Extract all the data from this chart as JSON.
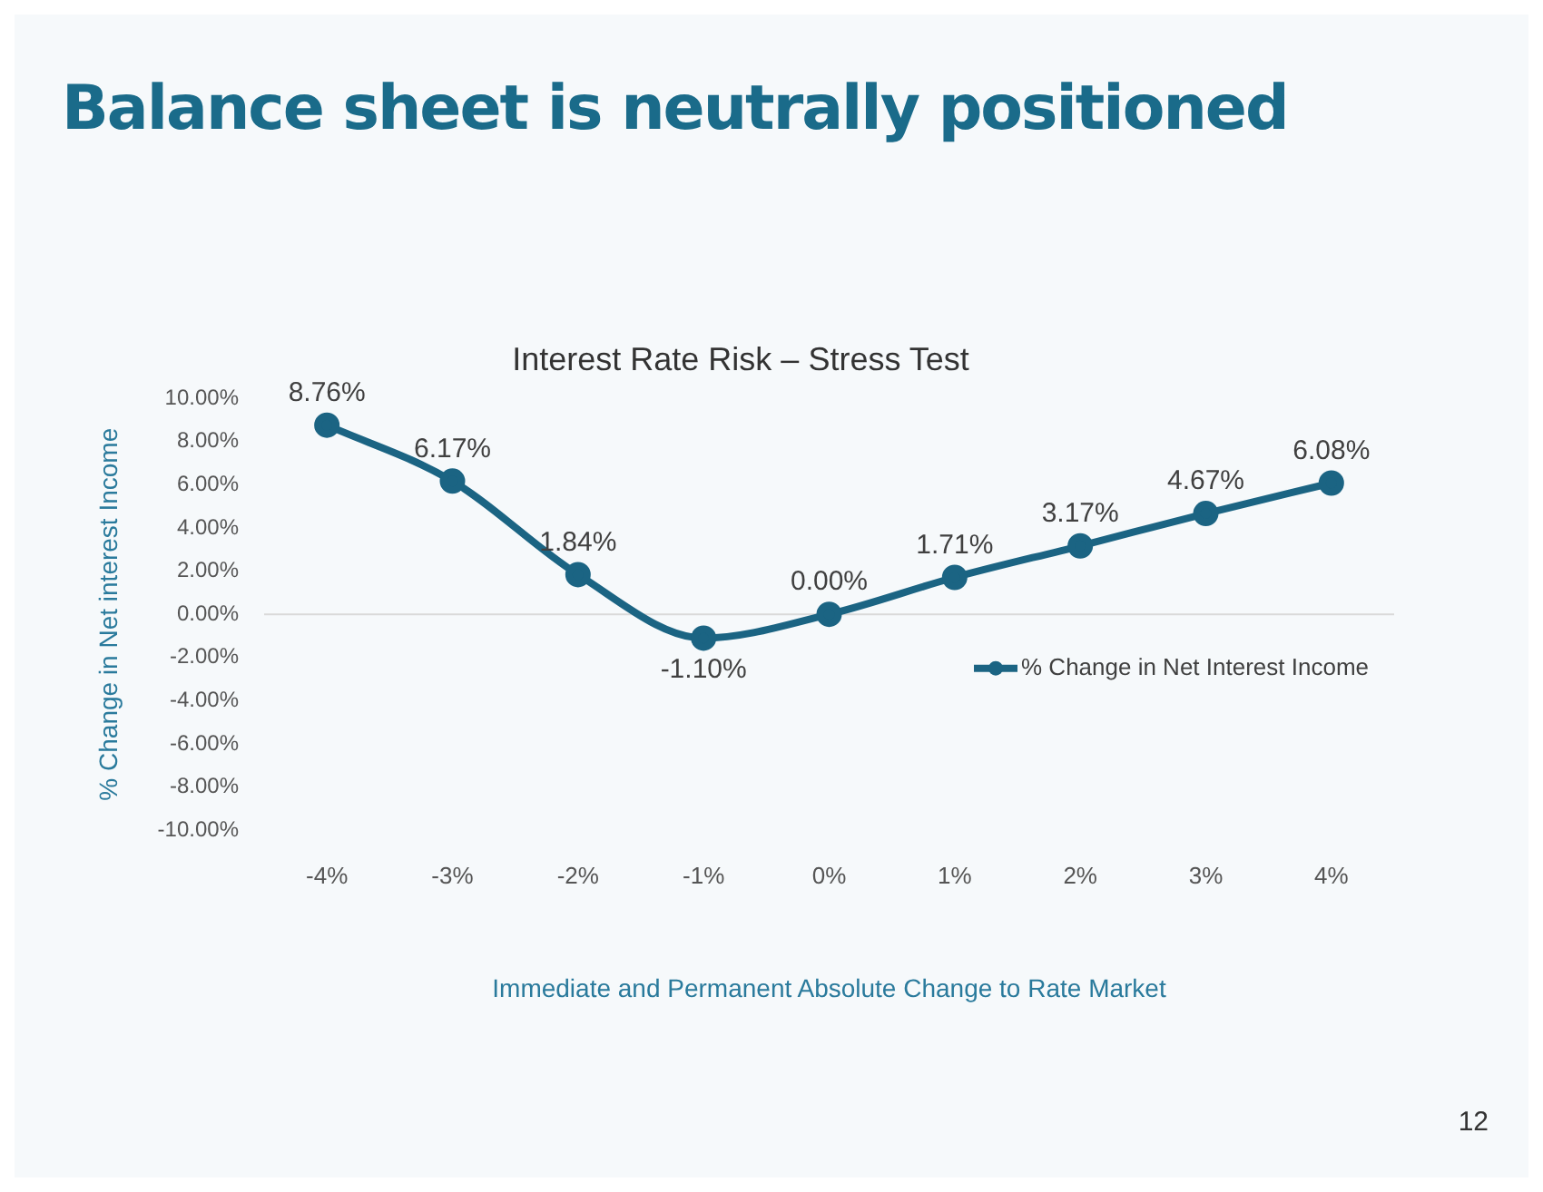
{
  "chart_data": {
    "type": "line",
    "title": "Balance sheet is neutrally positioned",
    "subtitle": "Interest Rate Risk – Stress Test",
    "xlabel": "Immediate and Permanent Absolute Change to Rate Market",
    "ylabel": "% Change in Net interest Income",
    "categories": [
      "-4%",
      "-3%",
      "-2%",
      "-1%",
      "0%",
      "1%",
      "2%",
      "3%",
      "4%"
    ],
    "series": [
      {
        "name": "% Change in Net Interest Income",
        "color": "#1b6483",
        "values": [
          8.76,
          6.17,
          1.84,
          -1.1,
          0.0,
          1.71,
          3.17,
          4.67,
          6.08
        ],
        "value_labels": [
          "8.76%",
          "6.17%",
          "1.84%",
          "-1.10%",
          "0.00%",
          "1.71%",
          "3.17%",
          "4.67%",
          "6.08%"
        ]
      }
    ],
    "ylim": [
      -10,
      10
    ],
    "yticks": [
      {
        "value": -10,
        "label": "-10.00%"
      },
      {
        "value": -8,
        "label": "-8.00%"
      },
      {
        "value": -6,
        "label": "-6.00%"
      },
      {
        "value": -4,
        "label": "-4.00%"
      },
      {
        "value": -2,
        "label": "-2.00%"
      },
      {
        "value": 0,
        "label": "0.00%"
      },
      {
        "value": 2,
        "label": "2.00%"
      },
      {
        "value": 4,
        "label": "4.00%"
      },
      {
        "value": 6,
        "label": "6.00%"
      },
      {
        "value": 8,
        "label": "8.00%"
      },
      {
        "value": 10,
        "label": "10.00%"
      }
    ],
    "ref_lines": [
      {
        "axis": "y",
        "value": 0,
        "color": "#d9d9d9"
      }
    ],
    "grid": false,
    "legend": "right",
    "marker": "circle",
    "line_style": "solid",
    "annotations": [
      "12"
    ]
  }
}
